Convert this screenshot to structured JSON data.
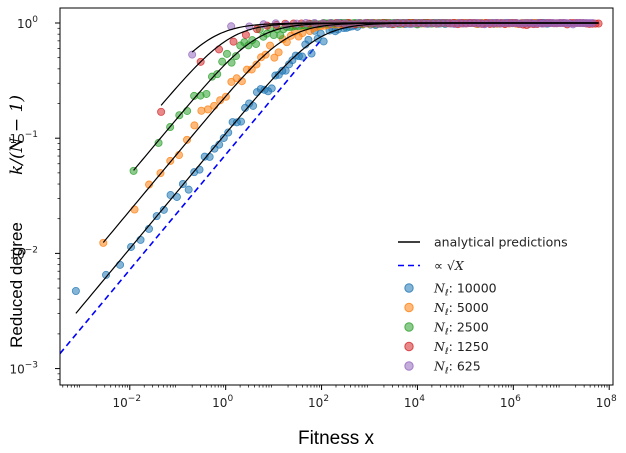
{
  "chart_data": {
    "type": "scatter",
    "title": "",
    "xlabel": "Fitness   x",
    "ylabel_text": "Reduced degree",
    "ylabel_math": "k/(N − 1)",
    "x_scale": "log",
    "y_scale": "log",
    "xlim": [
      0.00035,
      120000000.0
    ],
    "ylim": [
      0.00072,
      1.35
    ],
    "grid": false,
    "legend_position": "lower right",
    "x_ticks": [
      {
        "value": 0.01,
        "label": "10",
        "exp": "−2"
      },
      {
        "value": 1,
        "label": "10",
        "exp": "0"
      },
      {
        "value": 100,
        "label": "10",
        "exp": "2"
      },
      {
        "value": 10000,
        "label": "10",
        "exp": "4"
      },
      {
        "value": 1000000,
        "label": "10",
        "exp": "6"
      },
      {
        "value": 100000000,
        "label": "10",
        "exp": "8"
      }
    ],
    "y_ticks": [
      {
        "value": 0.001,
        "label": "10",
        "exp": "−3"
      },
      {
        "value": 0.01,
        "label": "10",
        "exp": "−2"
      },
      {
        "value": 0.1,
        "label": "10",
        "exp": "−1"
      },
      {
        "value": 1,
        "label": "10",
        "exp": "0"
      }
    ],
    "series": [
      {
        "name": "N_ℓ : 10000",
        "legend_main": "N",
        "legend_sub": "ℓ",
        "legend_value": ":  10000",
        "color": "#1f77b4",
        "x_min": 0.00075,
        "x_max": 5500000,
        "points": 150
      },
      {
        "name": "N_ℓ : 5000",
        "legend_main": "N",
        "legend_sub": "ℓ",
        "legend_value": ":  5000",
        "color": "#ff7f0e",
        "x_min": 0.0028,
        "x_max": 3000000,
        "points": 120
      },
      {
        "name": "N_ℓ : 2500",
        "legend_main": "N",
        "legend_sub": "ℓ",
        "legend_value": ":  2500",
        "color": "#2ca02c",
        "x_min": 0.012,
        "x_max": 40000,
        "points": 100
      },
      {
        "name": "N_ℓ : 1250",
        "legend_main": "N",
        "legend_sub": "ℓ",
        "legend_value": ":  1250",
        "color": "#d62728",
        "x_min": 0.045,
        "x_max": 60000000,
        "points": 80
      },
      {
        "name": "N_ℓ : 625",
        "legend_main": "N",
        "legend_sub": "ℓ",
        "legend_value": ":  625",
        "color": "#9467bd",
        "x_min": 0.2,
        "x_max": 45000000,
        "points": 70
      }
    ],
    "analytical_predictions": {
      "label": "analytical predictions",
      "color": "#000000",
      "style": "solid"
    },
    "sqrt_reference": {
      "label_prefix": "∝",
      "label_math": "√X",
      "color": "#0000ff",
      "style": "dashed",
      "x_start": 0.00035,
      "y_start": 0.00135,
      "x_end": 100,
      "y_end": 0.72
    }
  }
}
